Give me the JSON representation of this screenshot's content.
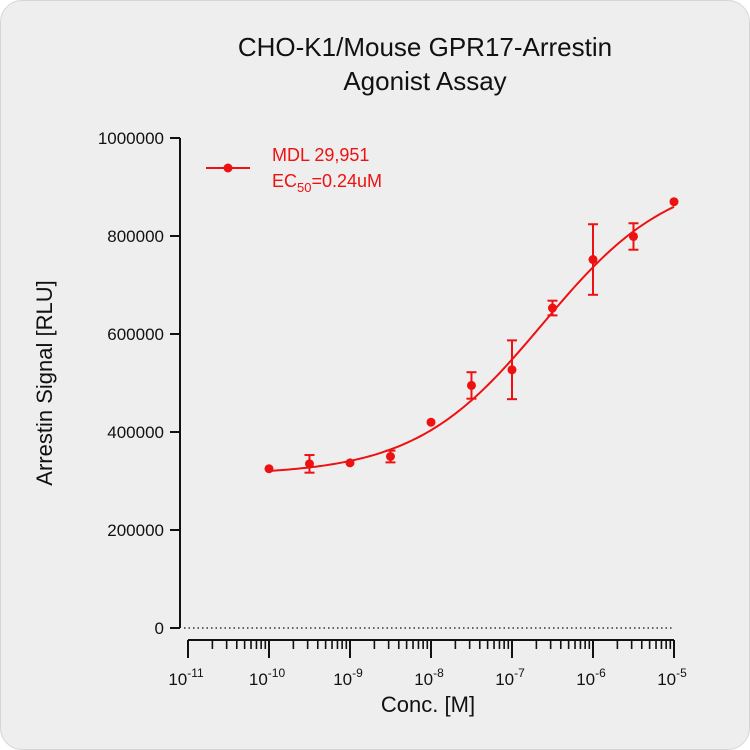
{
  "chart_data": {
    "type": "scatter",
    "title_line1": "CHO-K1/Mouse GPR17-Arrestin",
    "title_line2": "Agonist Assay",
    "xlabel": "Conc. [M]",
    "ylabel": "Arrestin Signal [RLU]",
    "x_scale": "log",
    "xlim": [
      1e-11,
      1e-05
    ],
    "ylim": [
      0,
      1000000
    ],
    "x_tick_labels": [
      {
        "exp": -11,
        "base": "10",
        "sup": "-11"
      },
      {
        "exp": -10,
        "base": "10",
        "sup": "-10"
      },
      {
        "exp": -9,
        "base": "10",
        "sup": "-9"
      },
      {
        "exp": -8,
        "base": "10",
        "sup": "-8"
      },
      {
        "exp": -7,
        "base": "10",
        "sup": "-7"
      },
      {
        "exp": -6,
        "base": "10",
        "sup": "-6"
      },
      {
        "exp": -5,
        "base": "10",
        "sup": "-5"
      }
    ],
    "y_ticks": [
      0,
      200000,
      400000,
      600000,
      800000,
      1000000
    ],
    "y_tick_labels": [
      "0",
      "200000",
      "400000",
      "600000",
      "800000",
      "1000000"
    ],
    "baseline_dotted_at": 0,
    "legend_position": "top-left",
    "series": [
      {
        "name": "MDL 29,951",
        "annotation_text": "EC",
        "annotation_sub": "50",
        "annotation_rest": "=0.24uM",
        "color": "#ee1111",
        "points": [
          {
            "x": 1e-10,
            "y": 325000,
            "err": 0
          },
          {
            "x": 3.16e-10,
            "y": 335000,
            "err": 18000
          },
          {
            "x": 1e-09,
            "y": 337000,
            "err": 0
          },
          {
            "x": 3.16e-09,
            "y": 350000,
            "err": 12000
          },
          {
            "x": 1e-08,
            "y": 420000,
            "err": 0
          },
          {
            "x": 3.16e-08,
            "y": 495000,
            "err": 27000
          },
          {
            "x": 1e-07,
            "y": 527000,
            "err": 60000
          },
          {
            "x": 3.16e-07,
            "y": 653000,
            "err": 15000
          },
          {
            "x": 1e-06,
            "y": 752000,
            "err": 72000
          },
          {
            "x": 3.16e-06,
            "y": 799000,
            "err": 27000
          },
          {
            "x": 1e-05,
            "y": 870000,
            "err": 0
          }
        ],
        "fit": {
          "bottom": 312000,
          "top": 930000,
          "ec50": 2.4e-07,
          "hill": 0.55
        }
      }
    ]
  }
}
